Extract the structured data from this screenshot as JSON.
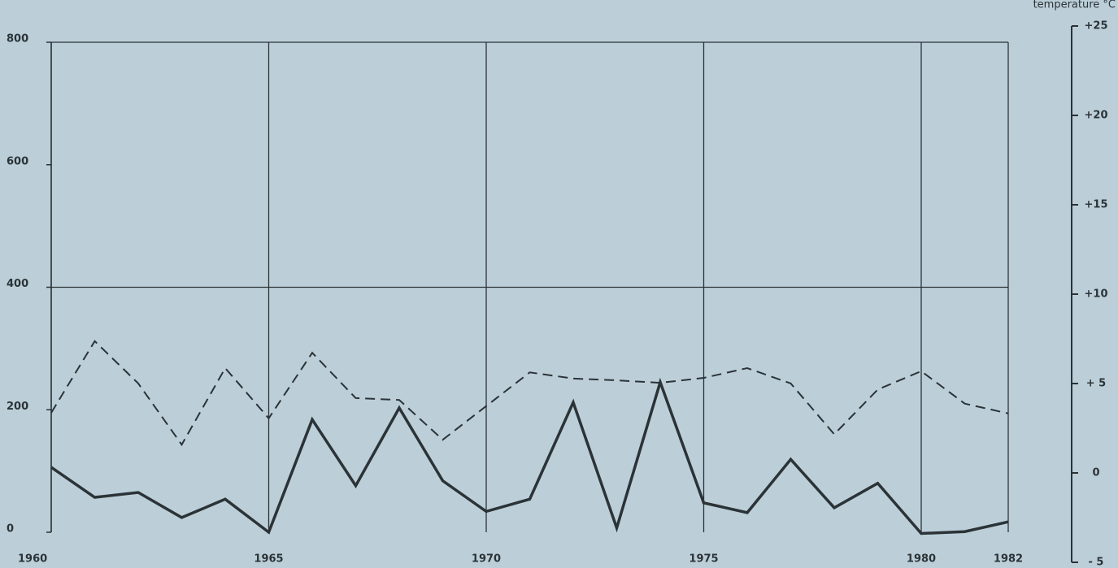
{
  "chart_data": {
    "type": "line",
    "y2_label": "temperature °C",
    "x": [
      1960,
      1961,
      1962,
      1963,
      1964,
      1965,
      1966,
      1967,
      1968,
      1969,
      1970,
      1971,
      1972,
      1973,
      1974,
      1975,
      1976,
      1977,
      1978,
      1979,
      1980,
      1981,
      1982
    ],
    "series": [
      {
        "color": "#2b3337",
        "dash": true,
        "values": [
          195,
          312,
          243,
          143,
          268,
          186,
          293,
          219,
          216,
          151,
          206,
          261,
          251,
          248,
          244,
          252,
          268,
          243,
          160,
          233,
          263,
          210,
          194
        ]
      },
      {
        "color": "#2b3337",
        "dash": false,
        "values": [
          106,
          57,
          65,
          24,
          54,
          0,
          184,
          76,
          203,
          84,
          34,
          54,
          212,
          7,
          245,
          48,
          32,
          119,
          40,
          80,
          -2,
          1,
          17
        ]
      }
    ],
    "xlim": [
      1960,
      1982
    ],
    "xticks": [
      1960,
      1965,
      1970,
      1975,
      1980,
      1982
    ],
    "ylim": [
      0,
      800
    ],
    "yticks": [
      0,
      200,
      400,
      600,
      800
    ],
    "ygrid": [
      400,
      800
    ],
    "y2lim": [
      -5,
      25
    ],
    "y2ticks": [
      {
        "value": 25,
        "label": "+25"
      },
      {
        "value": 20,
        "label": "+20"
      },
      {
        "value": 15,
        "label": "+15"
      },
      {
        "value": 10,
        "label": "+10"
      },
      {
        "value": 5,
        "label": "+ 5"
      },
      0,
      {
        "value": -5,
        "label": "- 5"
      }
    ]
  }
}
